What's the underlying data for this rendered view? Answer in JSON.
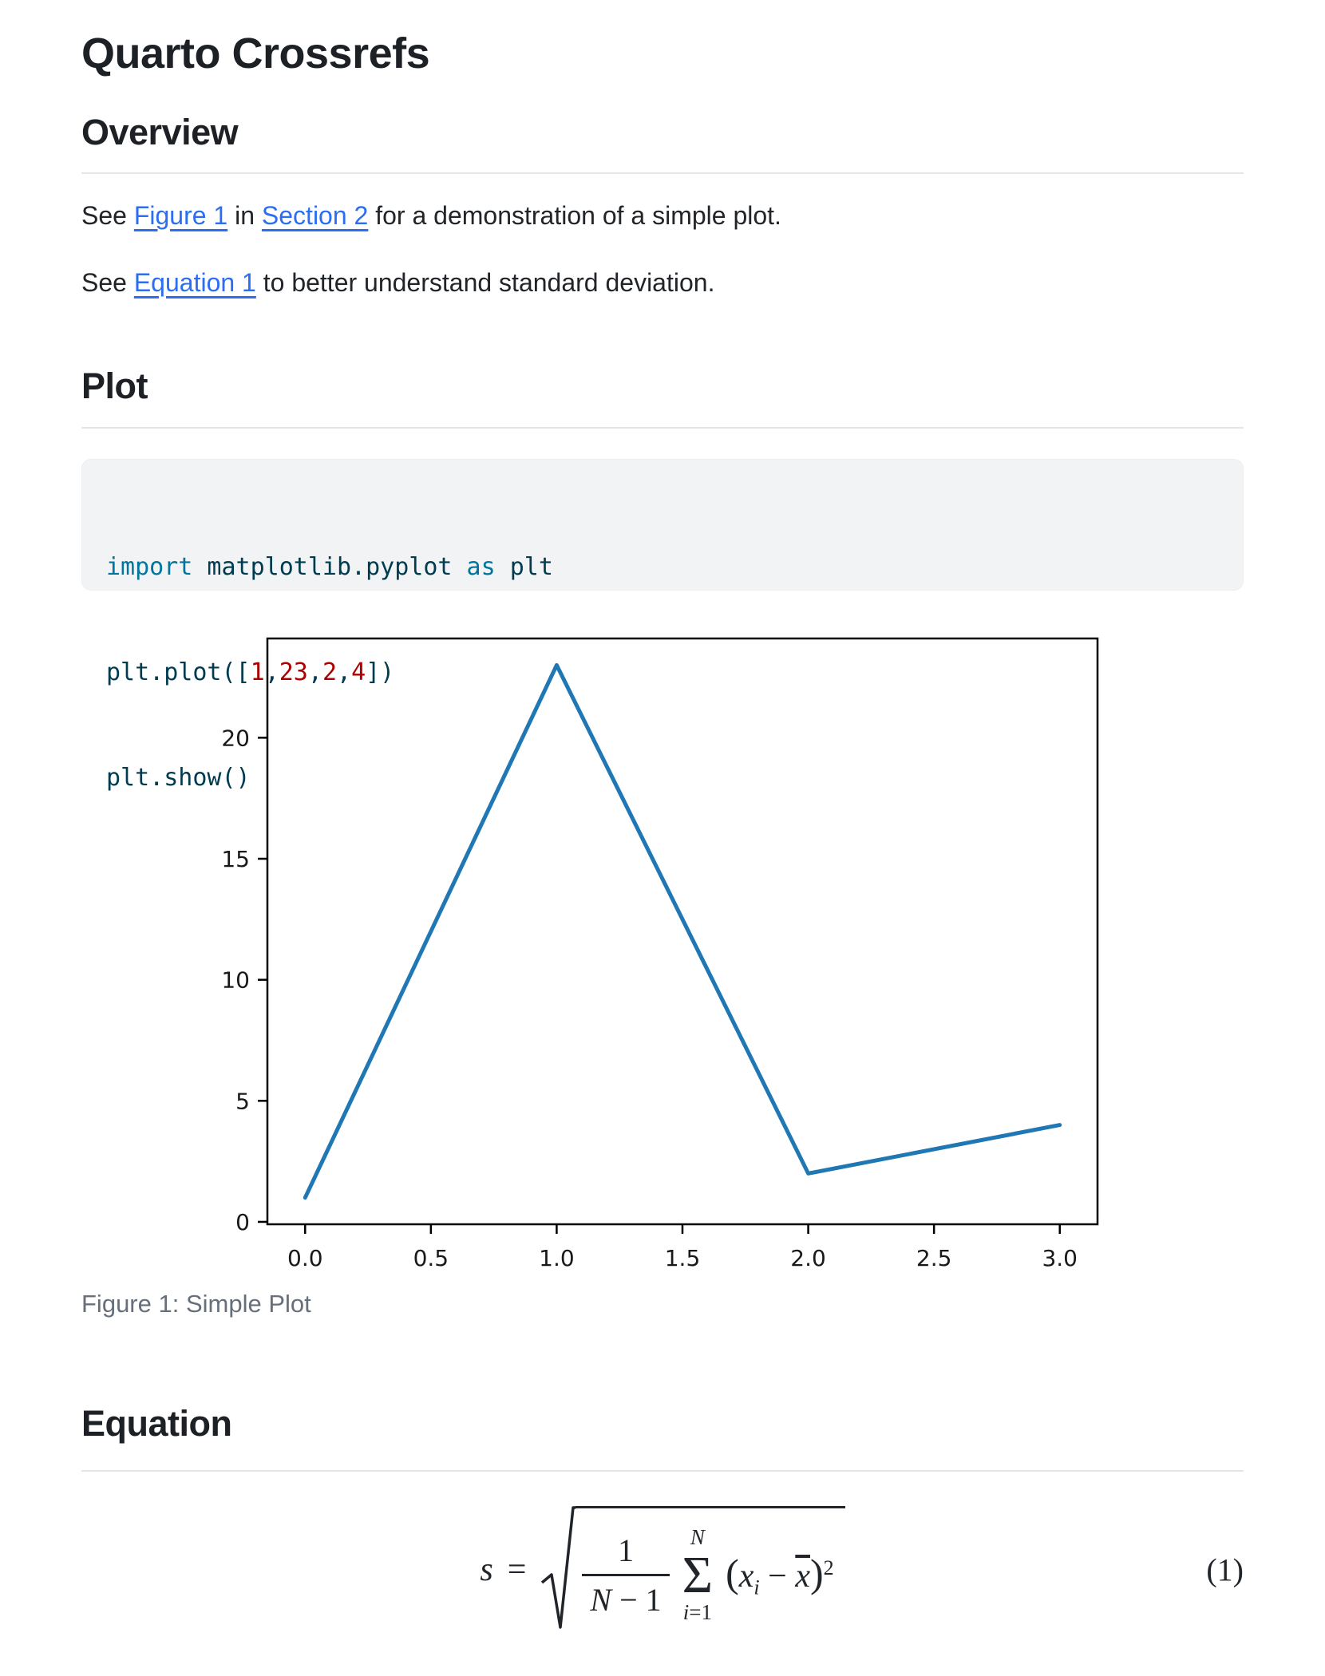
{
  "title": "Quarto Crossrefs",
  "overview": {
    "heading": "Overview",
    "p1": {
      "t1": "See ",
      "link1": "Figure 1",
      "t2": " in ",
      "link2": "Section 2",
      "t3": " for a demonstration of a simple plot."
    },
    "p2": {
      "t1": "See ",
      "link1": "Equation 1",
      "t2": " to better understand standard deviation."
    }
  },
  "plot_section": {
    "heading": "Plot",
    "code_lines": [
      [
        {
          "type": "kw",
          "text": "import"
        },
        {
          "type": "pl",
          "text": " matplotlib.pyplot "
        },
        {
          "type": "kw",
          "text": "as"
        },
        {
          "type": "pl",
          "text": " plt"
        }
      ],
      [
        {
          "type": "pl",
          "text": "plt.plot(["
        },
        {
          "type": "num",
          "text": "1"
        },
        {
          "type": "pl",
          "text": ","
        },
        {
          "type": "num",
          "text": "23"
        },
        {
          "type": "pl",
          "text": ","
        },
        {
          "type": "num",
          "text": "2"
        },
        {
          "type": "pl",
          "text": ","
        },
        {
          "type": "num",
          "text": "4"
        },
        {
          "type": "pl",
          "text": "])"
        }
      ],
      [
        {
          "type": "pl",
          "text": "plt.show()"
        }
      ]
    ]
  },
  "figure": {
    "caption": "Figure 1: Simple Plot"
  },
  "chart_data": {
    "type": "line",
    "x": [
      0,
      1,
      2,
      3
    ],
    "values": [
      1,
      23,
      2,
      4
    ],
    "title": "",
    "xlabel": "",
    "ylabel": "",
    "x_ticks": [
      0.0,
      0.5,
      1.0,
      1.5,
      2.0,
      2.5,
      3.0
    ],
    "x_tick_labels": [
      "0.0",
      "0.5",
      "1.0",
      "1.5",
      "2.0",
      "2.5",
      "3.0"
    ],
    "y_ticks": [
      0,
      5,
      10,
      15,
      20
    ],
    "y_tick_labels": [
      "0",
      "5",
      "10",
      "15",
      "20"
    ],
    "xlim": [
      -0.15,
      3.15
    ],
    "ylim": [
      -0.1,
      24.1
    ],
    "grid": false,
    "legend": false,
    "line_color": "#1f77b4"
  },
  "equation_section": {
    "heading": "Equation",
    "lhs": "s",
    "equals": "=",
    "frac_num": "1",
    "frac_den_N": "N",
    "frac_den_rest": " − 1",
    "sum_top": "N",
    "sigma": "Σ",
    "sum_bot_i": "i",
    "sum_bot_rest": "=1",
    "open_paren": "(",
    "var_x": "x",
    "sub_i": "i",
    "minus": " − ",
    "xbar": "x",
    "close_paren": ")",
    "sup_2": "2",
    "eq_number": "(1)"
  },
  "colors": {
    "link": "#2b6ef2",
    "code_keyword": "#00769E",
    "code_number": "#AD0000",
    "code_text": "#003B4F",
    "plot_line": "#1f77b4",
    "caption": "#666f7a"
  }
}
